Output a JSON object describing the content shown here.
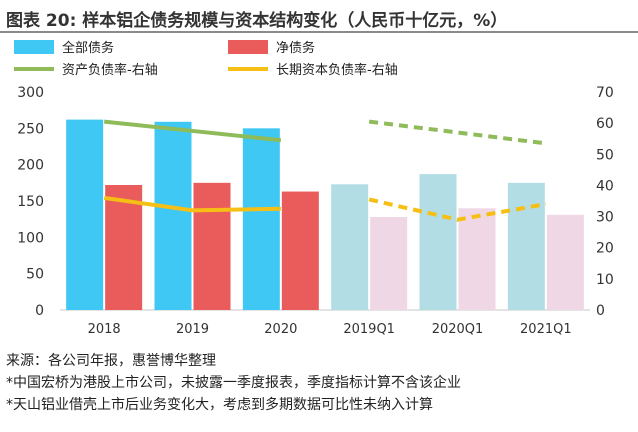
{
  "title": "图表 20: 样本铝企债务规模与资本结构变化（人民币十亿元，%）",
  "notes": [
    "来源：各公司年报，惠誉博华整理",
    "*中国宏桥为港股上市公司，未披露一季度报表，季度指标计算不含该企业",
    "*天山铝业借壳上市后业务变化大，考虑到多期数据可比性未纳入计算"
  ],
  "chart_data": {
    "type": "bar",
    "categories": [
      "2018",
      "2019",
      "2020",
      "2019Q1",
      "2020Q1",
      "2021Q1"
    ],
    "series": [
      {
        "name": "全部债务",
        "axis": "left",
        "kind": "bar",
        "values": [
          262,
          259,
          250,
          173,
          187,
          175
        ],
        "color": "#3ec8f3",
        "faded_color": "#b3dde5"
      },
      {
        "name": "净债务",
        "axis": "left",
        "kind": "bar",
        "values": [
          172,
          175,
          163,
          128,
          140,
          131
        ],
        "color": "#ea5b5b",
        "faded_color": "#efd7e6"
      },
      {
        "name": "资产负债率-右轴",
        "axis": "right",
        "kind": "line",
        "values": [
          60.5,
          57.5,
          54.5,
          null,
          null,
          null
        ],
        "color": "#8fbb5a"
      },
      {
        "name": "资产负债率-右轴",
        "axis": "right",
        "kind": "dashed-line",
        "values": [
          null,
          null,
          null,
          60.5,
          null,
          53.5
        ],
        "color": "#8fbb5a"
      },
      {
        "name": "长期资本负债率-右轴",
        "axis": "right",
        "kind": "line",
        "values": [
          36,
          32,
          32.5,
          null,
          null,
          null
        ],
        "color": "#f6bf15"
      },
      {
        "name": "长期资本负债率-右轴",
        "axis": "right",
        "kind": "dashed-line",
        "values": [
          null,
          null,
          null,
          35.5,
          29,
          34
        ],
        "color": "#f6bf15"
      }
    ],
    "legend": [
      {
        "label": "全部债务",
        "kind": "bar",
        "color": "#3ec8f3"
      },
      {
        "label": "净债务",
        "kind": "bar",
        "color": "#ea5b5b"
      },
      {
        "label": "资产负债率-右轴",
        "kind": "line",
        "color": "#8fbb5a"
      },
      {
        "label": "长期资本负债率-右轴",
        "kind": "line",
        "color": "#f6bf15"
      }
    ],
    "legend_position": "top",
    "y_left": {
      "min": 0,
      "max": 300,
      "ticks": [
        0,
        50,
        100,
        150,
        200,
        250,
        300
      ]
    },
    "y_right": {
      "min": 0,
      "max": 70,
      "ticks": [
        0,
        10,
        20,
        30,
        40,
        50,
        60,
        70
      ]
    },
    "grid": false
  }
}
